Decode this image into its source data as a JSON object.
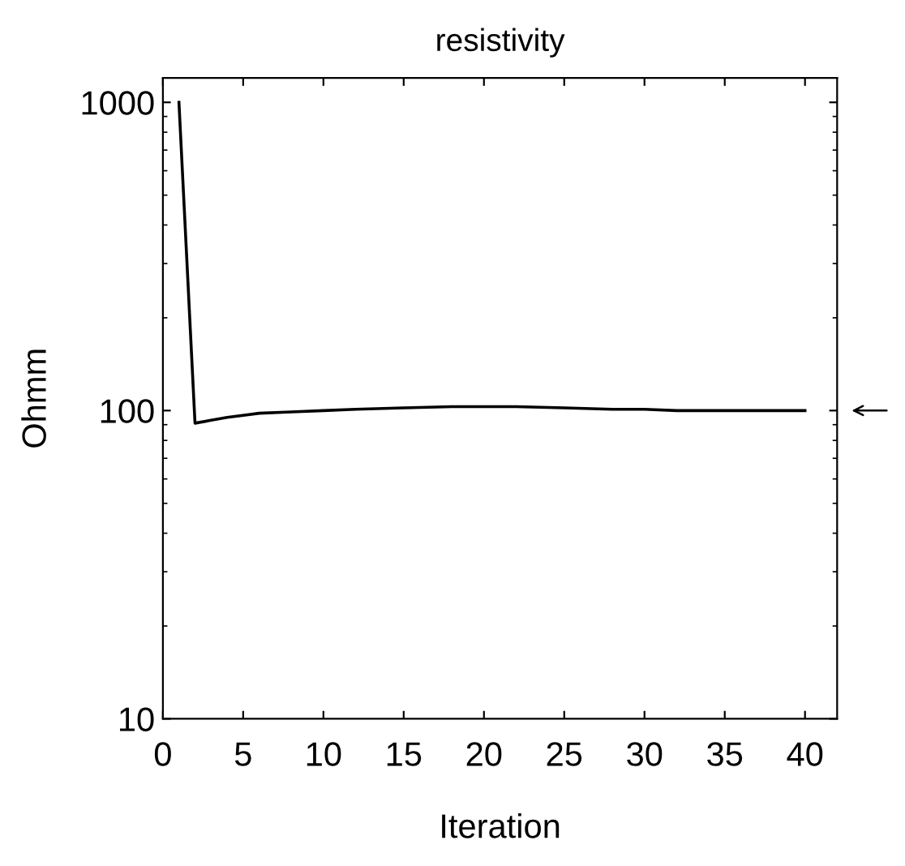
{
  "chart_data": {
    "type": "line",
    "title": "resistivity",
    "xlabel": "Iteration",
    "ylabel": "Ohmm",
    "log": "y",
    "x": [
      1,
      2,
      3,
      4,
      6,
      8,
      10,
      12,
      15,
      18,
      20,
      22,
      25,
      28,
      30,
      32,
      35,
      38,
      40
    ],
    "series": [
      {
        "color": "#000000",
        "values": [
          1000,
          91,
          93,
          95,
          98,
          99,
          100,
          101,
          102,
          103,
          103,
          103,
          102,
          101,
          101,
          100,
          100,
          100,
          100
        ]
      }
    ],
    "xlim": [
      0,
      42
    ],
    "ylim": [
      10,
      1200
    ],
    "xticks": [
      0,
      5,
      10,
      15,
      20,
      25,
      30,
      35,
      40
    ],
    "yticks": [
      10,
      100,
      1000
    ],
    "grid": false,
    "legend": false,
    "marker": "none",
    "line_style": "solid"
  }
}
